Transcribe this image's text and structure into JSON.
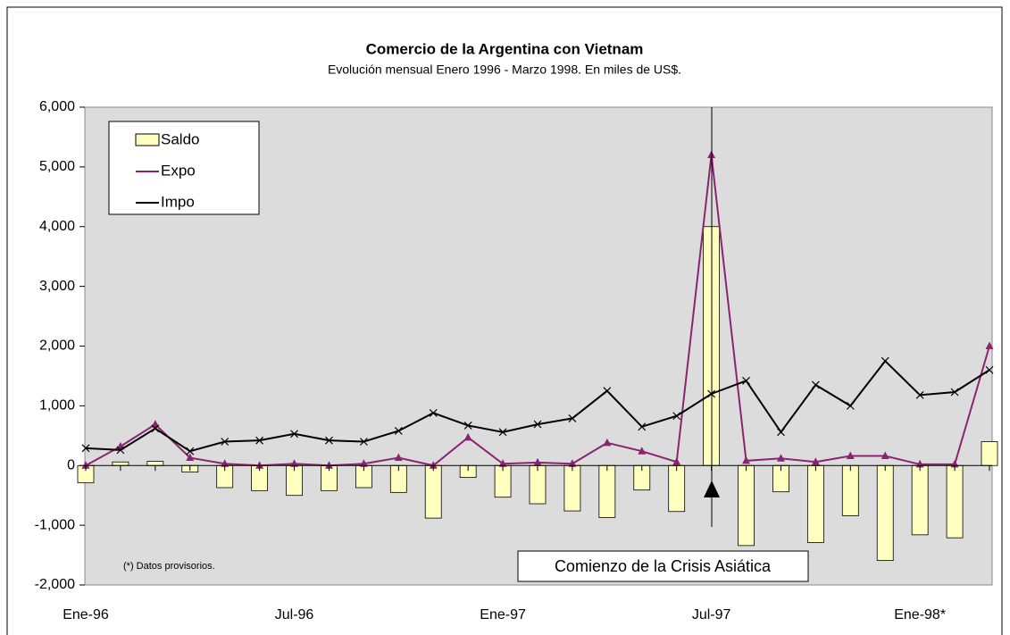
{
  "chart_data": {
    "type": "bar_line",
    "title": "Comercio de la Argentina con Vietnam",
    "subtitle": "Evolución mensual Enero 1996 - Marzo 1998. En miles de US$.",
    "categories": [
      "Ene-96",
      null,
      null,
      null,
      null,
      null,
      "Jul-96",
      null,
      null,
      null,
      null,
      null,
      "Ene-97",
      null,
      null,
      null,
      null,
      null,
      "Jul-97",
      null,
      null,
      null,
      null,
      null,
      "Ene-98*",
      null,
      null
    ],
    "series": [
      {
        "name": "Saldo",
        "type": "bar",
        "color": "#ffffc0",
        "values": [
          -290,
          60,
          70,
          -110,
          -370,
          -420,
          -500,
          -420,
          -370,
          -450,
          -880,
          -200,
          -530,
          -640,
          -760,
          -870,
          -410,
          -770,
          4000,
          -1340,
          -440,
          -1290,
          -840,
          -1590,
          -1160,
          -1210,
          400
        ]
      },
      {
        "name": "Expo",
        "type": "line",
        "marker": "triangle",
        "color": "#8b2470",
        "values": [
          0,
          320,
          690,
          130,
          30,
          0,
          30,
          0,
          30,
          130,
          0,
          470,
          30,
          50,
          30,
          380,
          240,
          60,
          5200,
          80,
          120,
          60,
          160,
          160,
          20,
          20,
          2000
        ]
      },
      {
        "name": "Impo",
        "type": "line",
        "marker": "x",
        "color": "#000000",
        "values": [
          290,
          260,
          620,
          240,
          400,
          420,
          530,
          420,
          400,
          580,
          880,
          670,
          560,
          690,
          790,
          1250,
          650,
          830,
          1200,
          1420,
          560,
          1350,
          1000,
          1750,
          1180,
          1230,
          1600
        ]
      }
    ],
    "ylim": [
      -2000,
      6000
    ],
    "yticks": [
      {
        "value": -2000,
        "label": "-2,000"
      },
      {
        "value": -1000,
        "label": "-1,000"
      },
      0,
      {
        "value": 1000,
        "label": "1,000"
      },
      {
        "value": 2000,
        "label": "2,000"
      },
      {
        "value": 3000,
        "label": "3,000"
      },
      {
        "value": 4000,
        "label": "4,000"
      },
      {
        "value": 5000,
        "label": "5,000"
      },
      {
        "value": 6000,
        "label": "6,000"
      }
    ],
    "grid": false,
    "legend": "upper left",
    "annotations": [
      "(*) Datos provisorios.",
      "Comienzo de la Crisis Asiática"
    ]
  }
}
